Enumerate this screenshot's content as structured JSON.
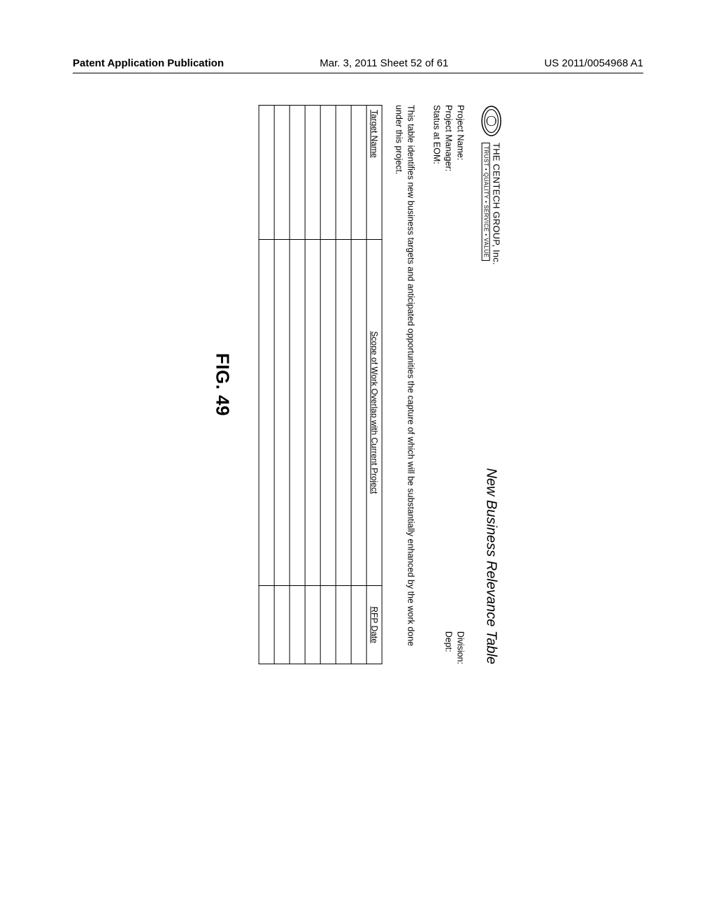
{
  "header": {
    "left": "Patent Application Publication",
    "center": "Mar. 3, 2011  Sheet 52 of 61",
    "right": "US 2011/0054968 A1"
  },
  "logo": {
    "company": "THE CENTECH GROUP, Inc.",
    "tagline": "TRUST • QUALITY • SERVICE • VALUE"
  },
  "doc_title": "New Business Relevance Table",
  "meta": {
    "left": "Project Name:\nProject Manager:\nStatus at EOM:",
    "right": "Division:\nDept:"
  },
  "description": "This table identifies new business targets and anticipated opportunities the capture of which will be substantially enhanced by the work done under this project.",
  "table": {
    "columns": [
      "Target Name",
      "Scope of Work Overlap with Current Project",
      "RFP Date"
    ],
    "row_count": 7
  },
  "figure_label": "FIG. 49",
  "style": {
    "bg": "#ffffff",
    "text": "#000000",
    "border": "#000000"
  }
}
